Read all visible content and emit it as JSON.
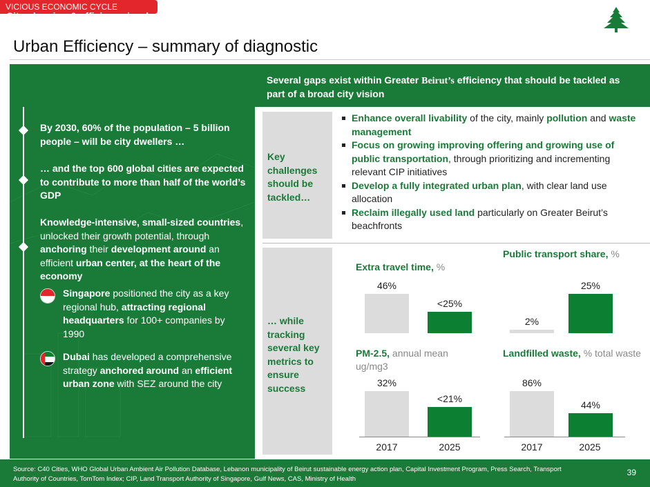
{
  "section_tag": "VICIOUS ECONOMIC CYCLE",
  "title": "Urban Efficiency – summary of diagnostic",
  "left": {
    "heading": "City planning & efficiency is a key enabler for economic development and growth",
    "p1": "By 2030, 60% of the population – 5 billion people – will be city dwellers …",
    "p2": "… and the top 600 global cities are expected to contribute to more than half of the world’s GDP",
    "p3_a": "Knowledge-intensive, small-sized countries",
    "p3_b": ", unlocked their growth potential, through ",
    "p3_c": "anchoring",
    "p3_d": " their ",
    "p3_e": "development around",
    "p3_f": " an efficient ",
    "p3_g": "urban center",
    "p3_h": ", at the heart of the economy",
    "sg_a": "Singapore",
    "sg_b": " positioned the city as a key regional hub, ",
    "sg_c": "attracting regional headquarters",
    "sg_d": " for 100+ companies by 1990",
    "ae_a": "Dubai",
    "ae_b": " has developed a comprehensive strategy ",
    "ae_c": "anchored around",
    "ae_d": " an ",
    "ae_e": "efficient urban zone",
    "ae_f": " with SEZ around the city"
  },
  "right": {
    "heading_a": "Several gaps exist within Greater ",
    "heading_b": "Beirut’s",
    "heading_c": " efficiency that should be tackled as part of a broad city vision",
    "challenges_label": "Key challenges should be tackled…",
    "metrics_label": "… while tracking several key metrics to ensure success",
    "bullets": [
      {
        "g1": "Enhance overall livability",
        "t1": " of the city, mainly ",
        "g2": "pollution",
        "t2": " and ",
        "g3": "waste management",
        "t3": ""
      },
      {
        "g1": "Focus on growing improving offering and growing use of public transportation",
        "t1": ", through prioritizing and incrementing relevant CIP initiatives",
        "g2": "",
        "t2": "",
        "g3": "",
        "t3": ""
      },
      {
        "g1": "Develop a fully integrated urban plan",
        "t1": ", with clear land use allocation",
        "g2": "",
        "t2": "",
        "g3": "",
        "t3": ""
      },
      {
        "g1": "Reclaim illegally used land",
        "t1": " particularly on Greater Beirut’s beachfronts",
        "g2": "",
        "t2": "",
        "g3": "",
        "t3": ""
      }
    ]
  },
  "chart_data": [
    {
      "type": "bar",
      "title": "Extra travel time",
      "unit": "%",
      "categories": [
        "2017",
        "2025"
      ],
      "values": [
        46,
        25
      ],
      "labels": [
        "46%",
        "<25%"
      ]
    },
    {
      "type": "bar",
      "title": "Public transport share",
      "unit": "%",
      "categories": [
        "2017",
        "2025"
      ],
      "values": [
        2,
        25
      ],
      "labels": [
        "2%",
        "25%"
      ]
    },
    {
      "type": "bar",
      "title": "PM-2.5",
      "unit": "annual mean ug/mg3",
      "categories": [
        "2017",
        "2025"
      ],
      "values": [
        32,
        21
      ],
      "labels": [
        "32%",
        "<21%"
      ]
    },
    {
      "type": "bar",
      "title": "Landfilled waste",
      "unit": "% total waste",
      "categories": [
        "2017",
        "2025"
      ],
      "values": [
        86,
        44
      ],
      "labels": [
        "86%",
        "44%"
      ]
    }
  ],
  "years": [
    "2017",
    "2025",
    "2017",
    "2025"
  ],
  "footer": {
    "source": "Source: C40 Cities, WHO Global Urban Ambient Air Pollution Database, Lebanon municipality of Beirut sustainable energy action plan, Capital Investment Program, Press Search, Transport Authority of Countries, TomTom Index; CIP, Land Transport Authority of Singapore, Gulf News, CAS, Ministry of Health",
    "page": "39"
  },
  "colors": {
    "green": "#1a7a38",
    "bar_green": "#0d7f33",
    "grey": "#dcdcdc",
    "red": "#e2262b"
  }
}
